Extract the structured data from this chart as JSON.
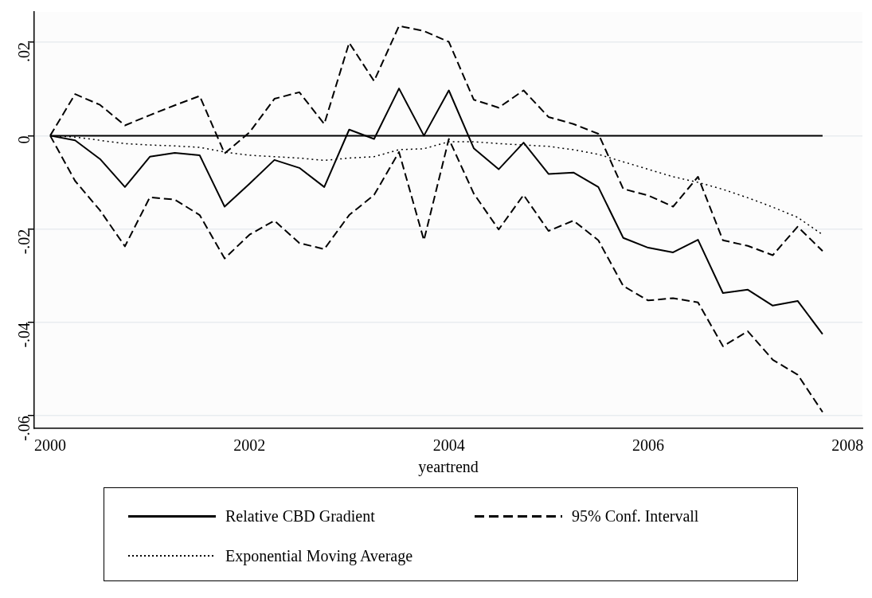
{
  "chart_data": {
    "type": "line",
    "xlabel": "yeartrend",
    "x": [
      2000,
      2000.25,
      2000.5,
      2000.75,
      2001,
      2001.25,
      2001.5,
      2001.75,
      2002,
      2002.25,
      2002.5,
      2002.75,
      2003,
      2003.25,
      2003.5,
      2003.75,
      2004,
      2004.25,
      2004.5,
      2004.75,
      2005,
      2005.25,
      2005.5,
      2005.75,
      2006,
      2006.25,
      2006.5,
      2006.75,
      2007,
      2007.25,
      2007.5,
      2007.75
    ],
    "series": [
      {
        "name": "Relative CBD Gradient",
        "color": "#000000",
        "line_style": "solid",
        "values": [
          0,
          -0.001,
          -0.005,
          -0.011,
          -0.0045,
          -0.0037,
          -0.0042,
          -0.0152,
          -0.0103,
          -0.0052,
          -0.0069,
          -0.011,
          0.0013,
          -0.0007,
          0.0101,
          0,
          0.0097,
          -0.0027,
          -0.0072,
          -0.0015,
          -0.0082,
          -0.0079,
          -0.011,
          -0.0219,
          -0.024,
          -0.025,
          -0.0223,
          -0.0337,
          -0.033,
          -0.0364,
          -0.0354,
          -0.0425
        ]
      },
      {
        "name": "95% Conf. Intervall",
        "color": "#000000",
        "line_style": "dashed",
        "values": [
          0,
          0.0089,
          0.0066,
          0.0022,
          0.0044,
          0.0065,
          0.0085,
          -0.0038,
          0.0007,
          0.0079,
          0.0093,
          0.0025,
          0.0199,
          0.0117,
          0.0235,
          0.0224,
          0.0201,
          0.0077,
          0.006,
          0.0097,
          0.004,
          0.0025,
          0.0004,
          -0.0114,
          -0.0128,
          -0.0152,
          -0.0088,
          -0.0224,
          -0.0236,
          -0.0256,
          -0.0195,
          -0.0247
        ]
      },
      {
        "name": "Exponential Moving Average",
        "color": "#000000",
        "line_style": "dotted",
        "values": [
          0,
          -0.0003,
          -0.001,
          -0.0017,
          -0.002,
          -0.0022,
          -0.0025,
          -0.0035,
          -0.0042,
          -0.0045,
          -0.0048,
          -0.0053,
          -0.0048,
          -0.0045,
          -0.003,
          -0.0028,
          -0.0013,
          -0.0013,
          -0.0017,
          -0.002,
          -0.0023,
          -0.003,
          -0.004,
          -0.0056,
          -0.0072,
          -0.0088,
          -0.01,
          -0.0115,
          -0.0133,
          -0.0153,
          -0.0175,
          -0.0212
        ]
      },
      {
        "color": "#000000",
        "line_style": "dashed",
        "values": [
          0,
          -0.0097,
          -0.016,
          -0.0237,
          -0.0132,
          -0.0137,
          -0.017,
          -0.0263,
          -0.0212,
          -0.0182,
          -0.023,
          -0.0243,
          -0.017,
          -0.0127,
          -0.0035,
          -0.0224,
          -0.0007,
          -0.0124,
          -0.0201,
          -0.0127,
          -0.0204,
          -0.0182,
          -0.0224,
          -0.0322,
          -0.0353,
          -0.0348,
          -0.0357,
          -0.0451,
          -0.0419,
          -0.048,
          -0.0512,
          -0.0592
        ]
      }
    ],
    "ref_lines": [
      {
        "axis": "y",
        "value": 0,
        "color": "#000000",
        "line_style": "solid"
      }
    ],
    "xlim": [
      1999.84,
      2008.15
    ],
    "xticks": [
      2000,
      2002,
      2004,
      2006,
      2008
    ],
    "ylim": [
      -0.0627,
      0.0265
    ],
    "yticks": [
      {
        "value": -0.06,
        "label": "-.06"
      },
      {
        "value": -0.04,
        "label": "-.04"
      },
      {
        "value": -0.02,
        "label": "-.02"
      },
      {
        "value": 0,
        "label": "0"
      },
      {
        "value": 0.02,
        "label": ".02"
      }
    ],
    "grid": "y",
    "legend": "bottom",
    "marker": "none"
  }
}
